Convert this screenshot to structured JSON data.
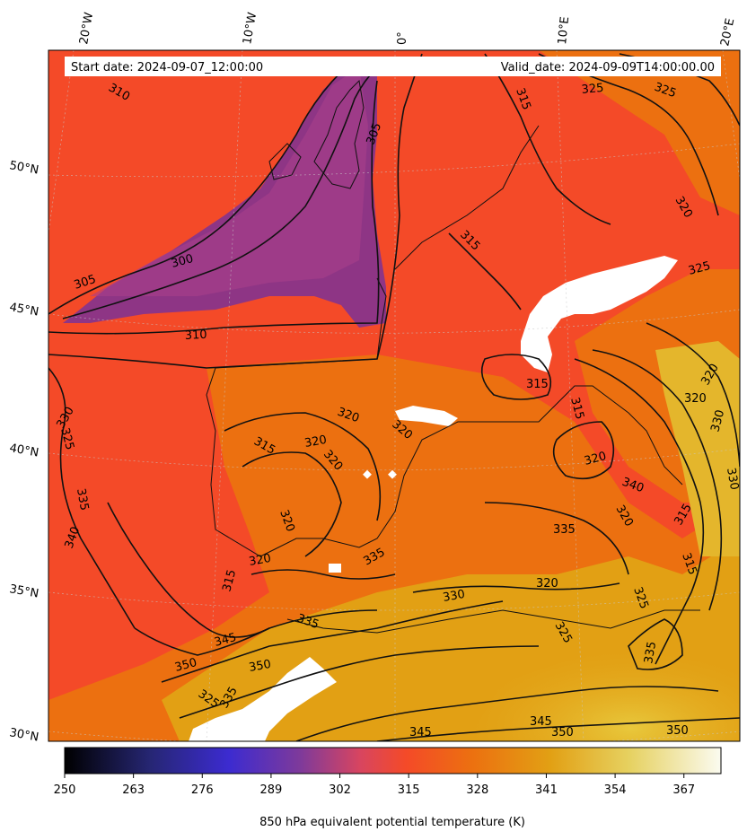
{
  "header": {
    "start_date": "Start date: 2024-09-07_12:00:00",
    "valid_date": "Valid_date: 2024-09-09T14:00:00.00"
  },
  "map": {
    "top_longitude_labels": [
      "20°W",
      "10°W",
      "0°",
      "10°E",
      "20°E"
    ],
    "left_latitude_labels": [
      "50°N",
      "45°N",
      "40°N",
      "35°N",
      "30°N"
    ],
    "contour_labels": [
      "310",
      "305",
      "300",
      "310",
      "305",
      "315",
      "315",
      "325",
      "325",
      "320",
      "325",
      "315",
      "320",
      "320",
      "320",
      "315",
      "320",
      "320",
      "320",
      "315",
      "330",
      "325",
      "340",
      "335",
      "335",
      "335",
      "340",
      "320",
      "320",
      "315",
      "320",
      "320",
      "320",
      "330",
      "330",
      "315",
      "315",
      "325",
      "335",
      "325",
      "330",
      "335",
      "345",
      "350",
      "350",
      "325"
    ],
    "colors": {
      "purple": "#8e3585",
      "red_orange": "#f44a28",
      "orange": "#ec7010",
      "amber": "#e2a014",
      "yellow": "#e8c83c",
      "missing": "#ffffff",
      "contour": "#000000"
    }
  },
  "colorbar": {
    "ticks": [
      "250",
      "263",
      "276",
      "289",
      "302",
      "315",
      "328",
      "341",
      "354",
      "367"
    ],
    "label": "850 hPa equivalent potential temperature (K)",
    "min": 250,
    "max": 374,
    "colormap": "CMRmap"
  }
}
